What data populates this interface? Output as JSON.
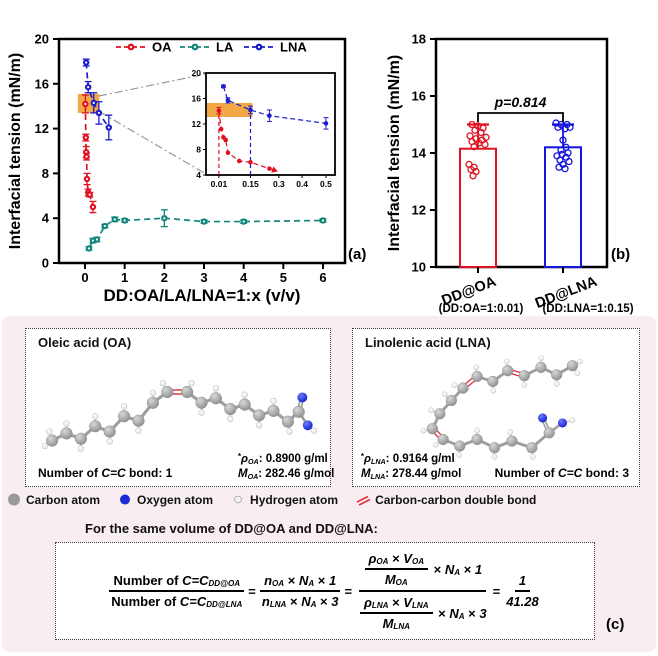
{
  "figure": {
    "panel_labels": {
      "a": "(a)",
      "b": "(b)",
      "c": "(c)"
    }
  },
  "chart_data": [
    {
      "id": "panel_a",
      "type": "scatter",
      "xlabel": "DD:OA/LA/LNA=1:x (v/v)",
      "ylabel": "Interfacial tension (mN/m)",
      "xlim": [
        -0.65,
        6.55
      ],
      "ylim": [
        0,
        20
      ],
      "xticks": [
        0,
        1,
        2,
        3,
        4,
        5,
        6
      ],
      "yticks": [
        0,
        4,
        8,
        12,
        16,
        20
      ],
      "grid": false,
      "legend_position": "top-inside",
      "series": [
        {
          "name": "OA",
          "color": "#e01121",
          "x": [
            0.01,
            0.02,
            0.03,
            0.04,
            0.05,
            0.08,
            0.12,
            0.2
          ],
          "y": [
            14.2,
            11.2,
            9.9,
            9.5,
            7.5,
            6.3,
            6.1,
            5.0
          ],
          "err": [
            0.8,
            0.3,
            0.5,
            0.3,
            0.5,
            0.3,
            0.2,
            0.5
          ]
        },
        {
          "name": "LA",
          "color": "#108779",
          "x": [
            0.1,
            0.2,
            0.3,
            0.5,
            0.75,
            1.0,
            2.0,
            3.0,
            4.0,
            6.0
          ],
          "y": [
            1.3,
            2.0,
            2.1,
            3.3,
            3.9,
            3.8,
            4.0,
            3.7,
            3.7,
            3.8
          ],
          "err": [
            0.15,
            0.2,
            0.2,
            0.15,
            0.2,
            0.15,
            0.75,
            0.15,
            0.15,
            0.15
          ]
        },
        {
          "name": "LNA",
          "color": "#1c1ccd",
          "x": [
            0.03,
            0.08,
            0.22,
            0.35,
            0.6
          ],
          "y": [
            17.9,
            15.7,
            14.3,
            13.4,
            12.1
          ],
          "err": [
            0.3,
            0.5,
            0.9,
            1.0,
            1.1
          ]
        }
      ],
      "highlight_box": {
        "x0": -0.18,
        "x1": 0.36,
        "y0": 13.4,
        "y1": 15.1,
        "color": "#f2a33c"
      },
      "inset": {
        "xticks": [
          0.01,
          0.15,
          0.3,
          0.4,
          0.5
        ],
        "yticks": [
          4,
          8,
          12,
          16,
          20
        ],
        "ylim": [
          4,
          20
        ],
        "series": [
          {
            "name": "OA",
            "color": "#e01121",
            "x": [
              0.01,
              0.02,
              0.03,
              0.04,
              0.05,
              0.1,
              0.15,
              0.25
            ],
            "y": [
              14.1,
              11.2,
              9.9,
              9.5,
              7.5,
              6.2,
              6.0,
              5.0
            ],
            "err": [
              0.5,
              0,
              0,
              0,
              0,
              0,
              0,
              0
            ],
            "end_arrow": true
          },
          {
            "name": "LNA",
            "color": "#1c1ccd",
            "x": [
              0.03,
              0.05,
              0.15,
              0.25,
              0.5
            ],
            "y": [
              17.9,
              15.7,
              14.2,
              13.3,
              12.1
            ],
            "err": [
              0.2,
              0.4,
              0.6,
              0.9,
              0.9
            ]
          }
        ],
        "vlines": [
          {
            "x": 0.01,
            "y": 14.1,
            "color": "#e01121"
          },
          {
            "x": 0.15,
            "y": 14.2,
            "color": "#1c1ccd"
          }
        ],
        "highlight_box": {
          "x0": 0.0,
          "x1": 0.16,
          "y0": 13.1,
          "y1": 15.3,
          "color": "#f2a33c"
        }
      }
    },
    {
      "id": "panel_b",
      "type": "bar",
      "ylabel": "Interfacial tension (mN/m)",
      "ylim": [
        10,
        18
      ],
      "yticks": [
        10,
        12,
        14,
        16,
        18
      ],
      "categories": [
        "DD@OA",
        "DD@LNA"
      ],
      "sublabels": [
        "(DD:OA=1:0.01)",
        "(DD:LNA=1:0.15)"
      ],
      "values": [
        14.15,
        14.2
      ],
      "errors": [
        0.85,
        0.8
      ],
      "colors": [
        "#e01121",
        "#1414dd"
      ],
      "significance": {
        "text": "p=0.814"
      },
      "points": [
        [
          [
            -6,
            15.0
          ],
          [
            0,
            14.95
          ],
          [
            5,
            14.88
          ],
          [
            -3,
            14.8
          ],
          [
            3,
            14.72
          ],
          [
            -8,
            14.6
          ],
          [
            8,
            14.55
          ],
          [
            -2,
            14.5
          ],
          [
            4,
            14.45
          ],
          [
            -6,
            14.4
          ],
          [
            1,
            14.35
          ],
          [
            7,
            14.3
          ],
          [
            -4,
            14.22
          ],
          [
            -9,
            13.6
          ],
          [
            -4,
            13.5
          ],
          [
            -7,
            13.42
          ],
          [
            -2,
            13.35
          ],
          [
            -5,
            13.2
          ]
        ],
        [
          [
            -7,
            15.05
          ],
          [
            -2,
            15.0
          ],
          [
            4,
            15.0
          ],
          [
            -5,
            14.9
          ],
          [
            2,
            14.85
          ],
          [
            7,
            14.9
          ],
          [
            0,
            14.45
          ],
          [
            3,
            14.2
          ],
          [
            -2,
            14.1
          ],
          [
            5,
            14.0
          ],
          [
            -1,
            13.95
          ],
          [
            -6,
            13.9
          ],
          [
            3,
            13.85
          ],
          [
            -3,
            13.75
          ],
          [
            6,
            13.7
          ],
          [
            0,
            13.6
          ],
          [
            -4,
            13.5
          ],
          [
            2,
            13.45
          ]
        ]
      ]
    }
  ],
  "molecule_section": {
    "oa": {
      "title": "Oleic acid (OA)",
      "bond_line": [
        {
          "t": "Number of ",
          "up": 1
        },
        {
          "t": "C=C"
        },
        {
          "t": " bond: 1",
          "up": 1
        }
      ],
      "density_line": [
        {
          "t": "*",
          "up": 1,
          "sup": 1
        },
        {
          "t": "ρ"
        },
        {
          "t": "OA",
          "sub": 1
        },
        {
          "t": ": 0.8900 g/ml",
          "up": 1
        }
      ],
      "mass_line": [
        {
          "t": "M"
        },
        {
          "t": "OA",
          "sub": 1
        },
        {
          "t": ": 282.46 g/mol",
          "up": 1
        }
      ]
    },
    "lna": {
      "title": "Linolenic acid (LNA)",
      "bond_line": [
        {
          "t": "Number of ",
          "up": 1
        },
        {
          "t": "C=C"
        },
        {
          "t": " bond: 3",
          "up": 1
        }
      ],
      "density_line": [
        {
          "t": "*",
          "up": 1,
          "sup": 1
        },
        {
          "t": "ρ"
        },
        {
          "t": "LNA",
          "sub": 1
        },
        {
          "t": ": 0.9164 g/ml",
          "up": 1
        }
      ],
      "mass_line": [
        {
          "t": "M"
        },
        {
          "t": "LNA",
          "sub": 1
        },
        {
          "t": ": 278.44 g/mol",
          "up": 1
        }
      ]
    },
    "atom_legend": [
      {
        "label": "Carbon atom",
        "icon": "carbon-atom-icon",
        "color": "#9a9a9a"
      },
      {
        "label": "Oxygen atom",
        "icon": "oxygen-atom-icon",
        "color": "#1c2bd6"
      },
      {
        "label": "Hydrogen atom",
        "icon": "hydrogen-atom-icon",
        "color": "#f6f6f6"
      },
      {
        "label": "Carbon-carbon double bond",
        "icon": "double-bond-icon",
        "color": "#e0333f"
      }
    ],
    "intro": "For the same volume of DD@OA and DD@LNA:"
  },
  "formula": [
    {
      "frac": {
        "num": [
          {
            "t": "Number of ",
            "up": 1
          },
          {
            "t": "C=C"
          },
          {
            "t": "DD@OA",
            "sub": 1
          }
        ],
        "den": [
          {
            "t": "Number of ",
            "up": 1
          },
          {
            "t": "C=C"
          },
          {
            "t": "DD@LNA",
            "sub": 1
          }
        ]
      }
    },
    {
      "t": "=",
      "up": 1
    },
    {
      "frac": {
        "num": [
          {
            "t": "n"
          },
          {
            "t": "OA",
            "sub": 1
          },
          {
            "t": " × ",
            "up": 1
          },
          {
            "t": "N"
          },
          {
            "t": "A",
            "sub": 1
          },
          {
            "t": " × ",
            "up": 1
          },
          {
            "t": "1"
          }
        ],
        "den": [
          {
            "t": "n"
          },
          {
            "t": "LNA",
            "sub": 1
          },
          {
            "t": " × ",
            "up": 1
          },
          {
            "t": "N"
          },
          {
            "t": "A",
            "sub": 1
          },
          {
            "t": " × ",
            "up": 1
          },
          {
            "t": "3"
          }
        ]
      }
    },
    {
      "t": "=",
      "up": 1
    },
    {
      "frac": {
        "num": [
          {
            "frac": {
              "num": [
                {
                  "t": "ρ"
                },
                {
                  "t": "OA",
                  "sub": 1
                },
                {
                  "t": " × ",
                  "up": 1
                },
                {
                  "t": "V"
                },
                {
                  "t": "OA",
                  "sub": 1
                }
              ],
              "den": [
                {
                  "t": "M"
                },
                {
                  "t": "OA",
                  "sub": 1
                }
              ]
            }
          },
          {
            "t": " × ",
            "up": 1
          },
          {
            "t": "N"
          },
          {
            "t": "A",
            "sub": 1
          },
          {
            "t": " × ",
            "up": 1
          },
          {
            "t": "1"
          }
        ],
        "den": [
          {
            "frac": {
              "num": [
                {
                  "t": "ρ"
                },
                {
                  "t": "LNA",
                  "sub": 1
                },
                {
                  "t": " × ",
                  "up": 1
                },
                {
                  "t": "V"
                },
                {
                  "t": "LNA",
                  "sub": 1
                }
              ],
              "den": [
                {
                  "t": "M"
                },
                {
                  "t": "LNA",
                  "sub": 1
                }
              ]
            }
          },
          {
            "t": " × ",
            "up": 1
          },
          {
            "t": "N"
          },
          {
            "t": "A",
            "sub": 1
          },
          {
            "t": " × ",
            "up": 1
          },
          {
            "t": "3"
          }
        ]
      }
    },
    {
      "t": "=",
      "up": 1
    },
    {
      "frac": {
        "num": [
          {
            "t": "1"
          }
        ],
        "den": [
          {
            "t": "41.28"
          }
        ]
      }
    }
  ]
}
